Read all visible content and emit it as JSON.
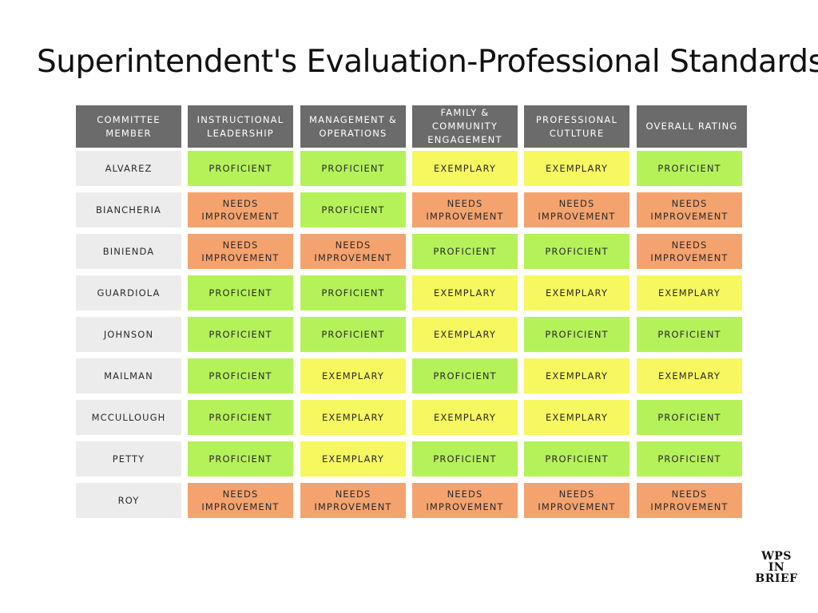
{
  "title": "Superintendent's Evaluation-Professional Standards",
  "headers": [
    "COMMITTEE\nMEMBER",
    "INSTRUCTIONAL\nLEADERSHIP",
    "MANAGEMENT &\nOPERATIONS",
    "FAMILY &\nCOMMUNITY\nENGAGEMENT",
    "PROFESSIONAL\nCUTLTURE",
    "OVERALL RATING"
  ],
  "rating_labels": {
    "proficient": "PROFICIENT",
    "exemplary": "EXEMPLARY",
    "needs": "NEEDS\nIMPROVEMENT"
  },
  "rating_colors": {
    "proficient": "#b5f25a",
    "exemplary": "#f7f760",
    "needs": "#f5a36e",
    "header": "#6b6b6b",
    "member": "#ececec"
  },
  "rows": [
    {
      "member": "ALVAREZ",
      "ratings": [
        "proficient",
        "proficient",
        "exemplary",
        "exemplary",
        "proficient"
      ]
    },
    {
      "member": "BIANCHERIA",
      "ratings": [
        "needs",
        "proficient",
        "needs",
        "needs",
        "needs"
      ]
    },
    {
      "member": "BINIENDA",
      "ratings": [
        "needs",
        "needs",
        "proficient",
        "proficient",
        "needs"
      ]
    },
    {
      "member": "GUARDIOLA",
      "ratings": [
        "proficient",
        "proficient",
        "exemplary",
        "exemplary",
        "exemplary"
      ]
    },
    {
      "member": "JOHNSON",
      "ratings": [
        "proficient",
        "proficient",
        "exemplary",
        "proficient",
        "proficient"
      ]
    },
    {
      "member": "MAILMAN",
      "ratings": [
        "proficient",
        "exemplary",
        "proficient",
        "exemplary",
        "exemplary"
      ]
    },
    {
      "member": "MCCULLOUGH",
      "ratings": [
        "proficient",
        "exemplary",
        "exemplary",
        "exemplary",
        "proficient"
      ]
    },
    {
      "member": "PETTY",
      "ratings": [
        "proficient",
        "exemplary",
        "proficient",
        "proficient",
        "proficient"
      ]
    },
    {
      "member": "ROY",
      "ratings": [
        "needs",
        "needs",
        "needs",
        "needs",
        "needs"
      ]
    }
  ],
  "logo": {
    "lines": [
      "WPS",
      "IN",
      "BRIEF"
    ]
  }
}
